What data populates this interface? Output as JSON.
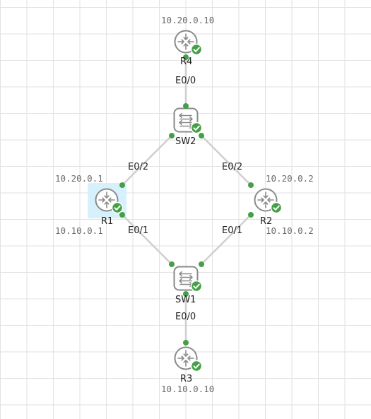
{
  "topology": {
    "nodes": [
      {
        "id": "R4",
        "label": "R4",
        "type": "router",
        "status": "ok",
        "ip": "10.20.0.10"
      },
      {
        "id": "SW2",
        "label": "SW2",
        "type": "switch",
        "status": "ok"
      },
      {
        "id": "R1",
        "label": "R1",
        "type": "router",
        "status": "ok",
        "ip": "10.20.0.1",
        "ip2": "10.10.0.1",
        "selected": true
      },
      {
        "id": "R2",
        "label": "R2",
        "type": "router",
        "status": "ok",
        "ip": "10.20.0.2",
        "ip2": "10.10.0.2"
      },
      {
        "id": "SW1",
        "label": "SW1",
        "type": "switch",
        "status": "ok"
      },
      {
        "id": "R3",
        "label": "R3",
        "type": "router",
        "status": "ok",
        "ip": "10.10.0.10"
      }
    ],
    "links": [
      {
        "a": "R4",
        "b": "SW2",
        "label": "E0/0"
      },
      {
        "a": "SW2",
        "b": "R1",
        "label": "E0/2"
      },
      {
        "a": "SW2",
        "b": "R2",
        "label": "E0/2"
      },
      {
        "a": "R1",
        "b": "SW1",
        "label": "E0/1"
      },
      {
        "a": "R2",
        "b": "SW1",
        "label": "E0/1"
      },
      {
        "a": "SW1",
        "b": "R3",
        "label": "E0/0"
      }
    ]
  },
  "colors": {
    "link": "#cfcfcf",
    "endpoint": "#43a047",
    "status_ok": "#43a047",
    "device_stroke": "#8a8a8a",
    "selection": "#d6f1fb"
  }
}
